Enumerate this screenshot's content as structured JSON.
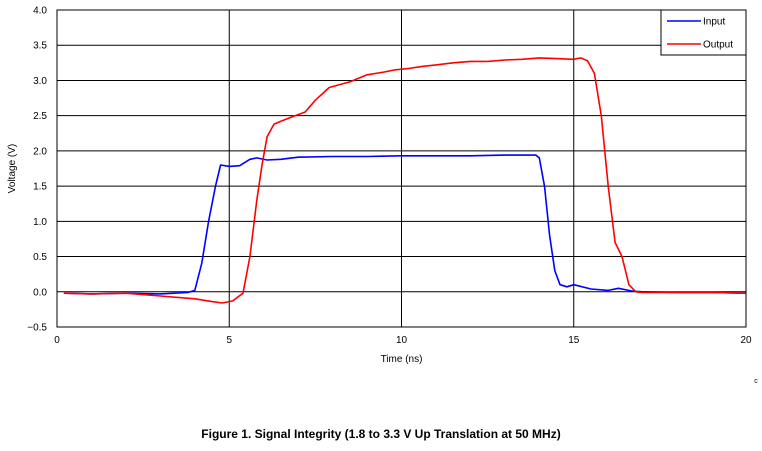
{
  "caption": "Figure 1. Signal Integrity (1.8 to 3.3 V Up Translation at 50 MHz)",
  "corner_mark": "c",
  "chart_data": {
    "type": "line",
    "xlabel": "Time (ns)",
    "ylabel": "Voltage (V)",
    "xlim": [
      0,
      20
    ],
    "ylim": [
      -0.5,
      4.0
    ],
    "xticks": [
      0,
      5,
      10,
      15,
      20
    ],
    "yticks": [
      -0.5,
      0.0,
      0.5,
      1.0,
      1.5,
      2.0,
      2.5,
      3.0,
      3.5,
      4.0
    ],
    "xtick_labels": [
      "0",
      "5",
      "10",
      "15",
      "20"
    ],
    "ytick_labels": [
      "−0.5",
      "0.0",
      "0.5",
      "1.0",
      "1.5",
      "2.0",
      "2.5",
      "3.0",
      "3.5",
      "4.0"
    ],
    "grid": true,
    "legend_position": "top-right",
    "series": [
      {
        "name": "Input",
        "color": "#0000ff",
        "points": [
          [
            0.2,
            -0.02
          ],
          [
            1,
            -0.03
          ],
          [
            2,
            -0.02
          ],
          [
            3,
            -0.03
          ],
          [
            3.8,
            -0.01
          ],
          [
            4.0,
            0.02
          ],
          [
            4.2,
            0.4
          ],
          [
            4.4,
            1.0
          ],
          [
            4.6,
            1.5
          ],
          [
            4.75,
            1.8
          ],
          [
            5,
            1.78
          ],
          [
            5.3,
            1.79
          ],
          [
            5.6,
            1.88
          ],
          [
            5.8,
            1.9
          ],
          [
            6.1,
            1.87
          ],
          [
            6.5,
            1.88
          ],
          [
            7,
            1.91
          ],
          [
            8,
            1.92
          ],
          [
            9,
            1.92
          ],
          [
            10,
            1.93
          ],
          [
            11,
            1.93
          ],
          [
            12,
            1.93
          ],
          [
            13,
            1.94
          ],
          [
            13.9,
            1.94
          ],
          [
            14.0,
            1.9
          ],
          [
            14.15,
            1.5
          ],
          [
            14.3,
            0.8
          ],
          [
            14.45,
            0.3
          ],
          [
            14.6,
            0.1
          ],
          [
            14.8,
            0.07
          ],
          [
            15,
            0.1
          ],
          [
            15.5,
            0.04
          ],
          [
            16,
            0.02
          ],
          [
            16.3,
            0.05
          ],
          [
            16.7,
            0.01
          ],
          [
            17,
            0.0
          ],
          [
            18,
            -0.01
          ],
          [
            19,
            -0.01
          ],
          [
            20,
            -0.02
          ]
        ]
      },
      {
        "name": "Output",
        "color": "#ff0000",
        "points": [
          [
            0.2,
            -0.02
          ],
          [
            1,
            -0.03
          ],
          [
            2,
            -0.02
          ],
          [
            3,
            -0.06
          ],
          [
            4,
            -0.1
          ],
          [
            4.5,
            -0.14
          ],
          [
            4.8,
            -0.16
          ],
          [
            5.1,
            -0.13
          ],
          [
            5.4,
            -0.02
          ],
          [
            5.6,
            0.5
          ],
          [
            5.8,
            1.3
          ],
          [
            5.95,
            1.8
          ],
          [
            6.1,
            2.2
          ],
          [
            6.3,
            2.38
          ],
          [
            6.5,
            2.42
          ],
          [
            6.8,
            2.48
          ],
          [
            7.2,
            2.55
          ],
          [
            7.5,
            2.72
          ],
          [
            7.9,
            2.9
          ],
          [
            8.5,
            2.98
          ],
          [
            9,
            3.08
          ],
          [
            9.5,
            3.12
          ],
          [
            9.8,
            3.15
          ],
          [
            10.2,
            3.17
          ],
          [
            10.6,
            3.2
          ],
          [
            11,
            3.22
          ],
          [
            11.5,
            3.25
          ],
          [
            12,
            3.27
          ],
          [
            12.5,
            3.27
          ],
          [
            13,
            3.29
          ],
          [
            13.5,
            3.3
          ],
          [
            14,
            3.32
          ],
          [
            14.5,
            3.31
          ],
          [
            15,
            3.3
          ],
          [
            15.2,
            3.32
          ],
          [
            15.4,
            3.28
          ],
          [
            15.6,
            3.1
          ],
          [
            15.8,
            2.5
          ],
          [
            16.0,
            1.5
          ],
          [
            16.2,
            0.7
          ],
          [
            16.4,
            0.5
          ],
          [
            16.6,
            0.1
          ],
          [
            16.8,
            0.0
          ],
          [
            17,
            -0.01
          ],
          [
            18,
            -0.01
          ],
          [
            19,
            -0.01
          ],
          [
            20,
            -0.02
          ]
        ]
      }
    ]
  }
}
